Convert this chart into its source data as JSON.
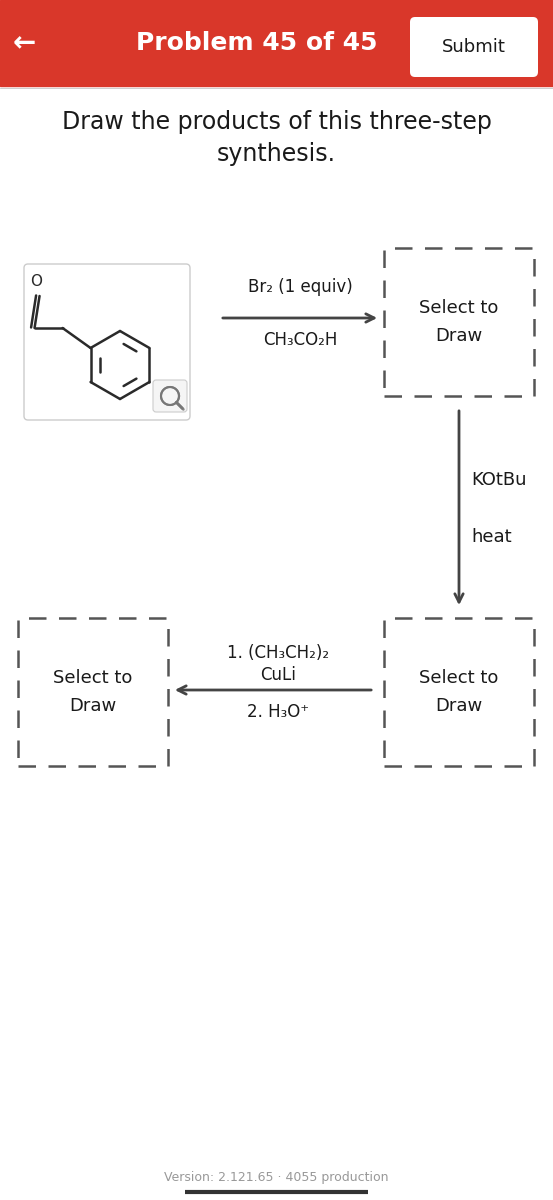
{
  "bg_color": "#ffffff",
  "header_bg": "#d9372a",
  "header_text": "Problem 45 of 45",
  "header_text_color": "#ffffff",
  "header_fontsize": 18,
  "back_arrow": "←",
  "submit_text": "Submit",
  "submit_bg": "#ffffff",
  "submit_text_color": "#1a1a1a",
  "title_line1": "Draw the products of this three-step",
  "title_line2": "synthesis.",
  "title_fontsize": 17,
  "title_color": "#1a1a1a",
  "step1_reagent_line1": "Br₂ (1 equiv)",
  "step1_reagent_line2": "CH₃CO₂H",
  "step2_reagent_line1": "KOtBu",
  "step2_reagent_line2": "heat",
  "step3_reagent_line1": "1. (CH₃CH₂)₂",
  "step3_reagent_line2": "CuLi",
  "step3_reagent_line3": "2. H₃O⁺",
  "select_draw_text": "Select to\nDraw",
  "reagent_fontsize": 12,
  "select_fontsize": 13,
  "arrow_color": "#444444",
  "dashed_box_color": "#555555",
  "version_text": "Version: 2.121.65 · 4055 production",
  "version_color": "#999999",
  "version_fontsize": 9,
  "fig_width": 5.53,
  "fig_height": 12.0
}
